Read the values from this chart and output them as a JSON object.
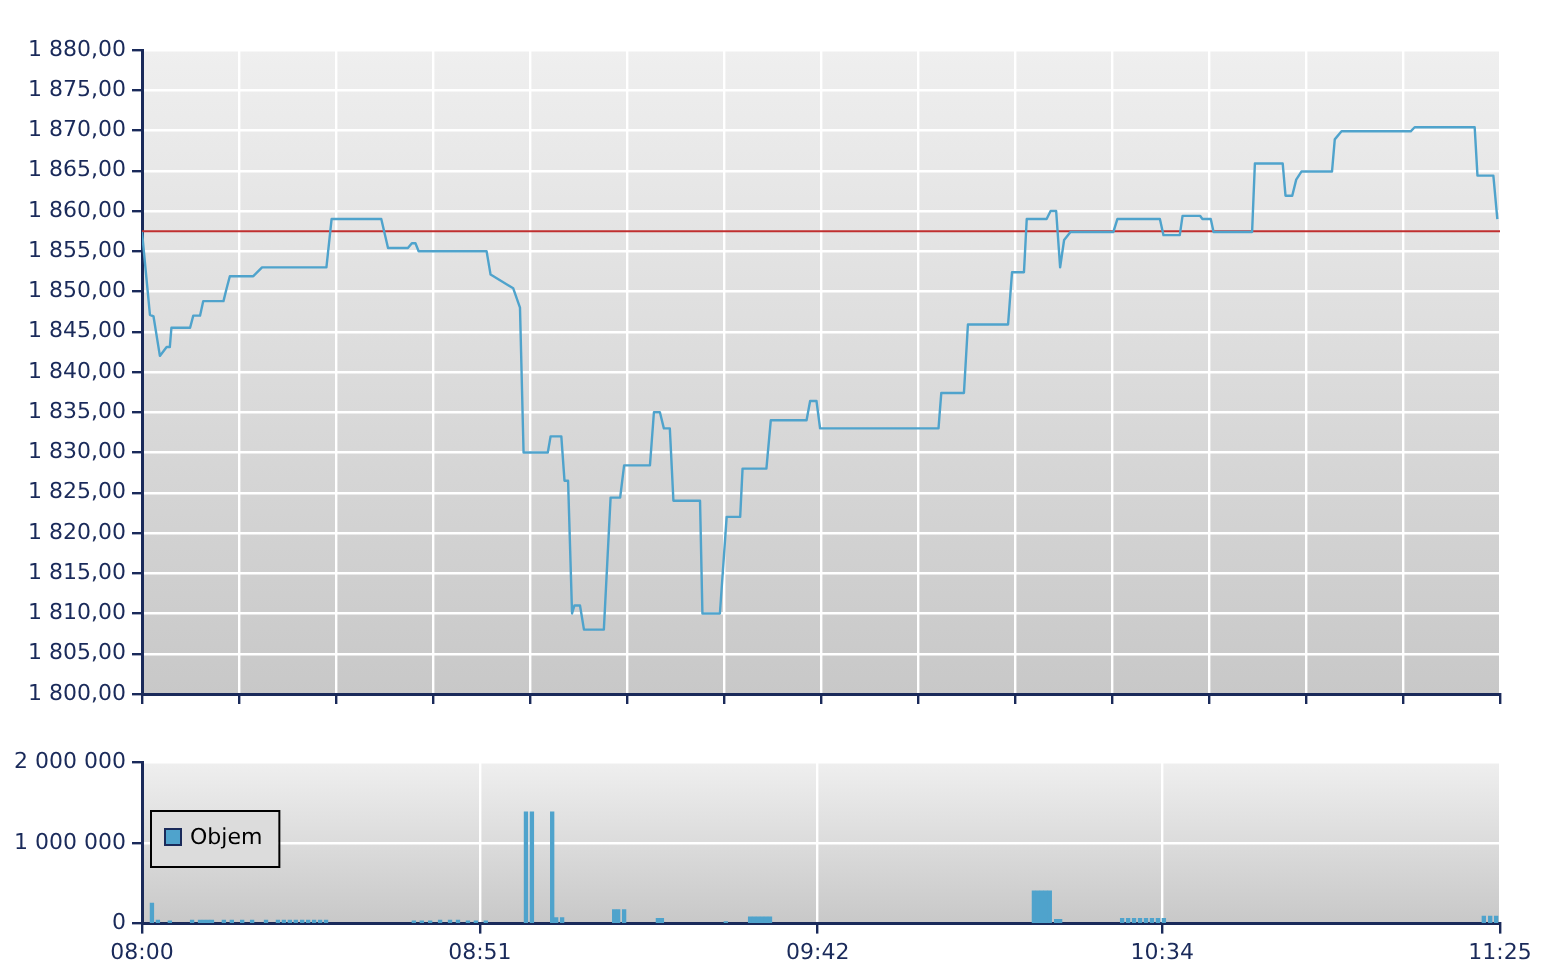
{
  "chart_data": [
    {
      "type": "line",
      "marker": "none",
      "grid": true,
      "tick_labels": "y",
      "color": "#4fa3cc",
      "x": [
        8.0,
        8.02,
        8.029,
        8.045,
        8.062,
        8.07,
        8.074,
        8.121,
        8.129,
        8.146,
        8.154,
        8.205,
        8.213,
        8.221,
        8.28,
        8.302,
        8.464,
        8.477,
        8.602,
        8.619,
        8.669,
        8.679,
        8.688,
        8.696,
        8.867,
        8.877,
        8.934,
        8.951,
        8.96,
        9.021,
        9.028,
        9.055,
        9.063,
        9.072,
        9.082,
        9.088,
        9.102,
        9.112,
        9.162,
        9.179,
        9.203,
        9.213,
        9.278,
        9.288,
        9.303,
        9.313,
        9.328,
        9.337,
        9.404,
        9.41,
        9.454,
        9.471,
        9.505,
        9.511,
        9.571,
        9.582,
        9.672,
        9.681,
        9.697,
        9.706,
        10.004,
        10.011,
        10.068,
        10.078,
        10.179,
        10.189,
        10.219,
        10.226,
        10.276,
        10.286,
        10.3,
        10.31,
        10.32,
        10.336,
        10.444,
        10.454,
        10.561,
        10.57,
        10.611,
        10.618,
        10.662,
        10.668,
        10.689,
        10.696,
        10.793,
        10.8,
        10.87,
        10.877,
        10.894,
        10.904,
        10.917,
        10.994,
        11.001,
        11.018,
        11.192,
        11.202,
        11.353,
        11.36,
        11.4,
        11.41
      ],
      "values": [
        1857.4,
        1847.1,
        1846.9,
        1842.0,
        1843.1,
        1843.1,
        1845.5,
        1845.5,
        1847.0,
        1847.0,
        1848.8,
        1848.8,
        1850.4,
        1851.9,
        1851.9,
        1853.0,
        1853.0,
        1859.0,
        1859.0,
        1855.4,
        1855.4,
        1856.0,
        1856.0,
        1855.0,
        1855.0,
        1852.1,
        1850.4,
        1848.0,
        1830.0,
        1830.0,
        1832.0,
        1832.0,
        1826.5,
        1826.5,
        1810.0,
        1811.0,
        1811.0,
        1808.0,
        1808.0,
        1824.4,
        1824.4,
        1828.4,
        1828.4,
        1835.0,
        1835.0,
        1833.0,
        1833.0,
        1824.0,
        1824.0,
        1810.0,
        1810.0,
        1822.0,
        1822.0,
        1828.0,
        1828.0,
        1834.0,
        1834.0,
        1836.4,
        1836.4,
        1833.0,
        1833.0,
        1837.4,
        1837.4,
        1845.9,
        1845.9,
        1852.4,
        1852.4,
        1859.0,
        1859.0,
        1860.0,
        1860.0,
        1853.0,
        1856.4,
        1857.4,
        1857.4,
        1859.0,
        1859.0,
        1857.0,
        1857.0,
        1859.4,
        1859.4,
        1859.0,
        1859.0,
        1857.4,
        1857.4,
        1865.9,
        1865.9,
        1861.9,
        1861.9,
        1863.9,
        1864.9,
        1864.9,
        1868.9,
        1869.9,
        1869.9,
        1870.4,
        1870.4,
        1864.4,
        1864.4,
        1859.0
      ],
      "xlim": [
        8,
        11.4167
      ],
      "xticks": [
        {
          "value": 8,
          "label": null
        },
        {
          "value": 8.244,
          "label": null
        },
        {
          "value": 8.4881,
          "label": null
        },
        {
          "value": 8.7321,
          "label": null
        },
        {
          "value": 8.9762,
          "label": null
        },
        {
          "value": 9.2202,
          "label": null
        },
        {
          "value": 9.4643,
          "label": null
        },
        {
          "value": 9.7083,
          "label": null
        },
        {
          "value": 9.9524,
          "label": null
        },
        {
          "value": 10.1964,
          "label": null
        },
        {
          "value": 10.4405,
          "label": null
        },
        {
          "value": 10.6845,
          "label": null
        },
        {
          "value": 10.9286,
          "label": null
        },
        {
          "value": 11.1726,
          "label": null
        },
        {
          "value": 11.4167,
          "label": null
        }
      ],
      "ylim": [
        1800,
        1880
      ],
      "yticks": [
        {
          "value": 1800,
          "label": "1 800,00"
        },
        {
          "value": 1805,
          "label": "1 805,00"
        },
        {
          "value": 1810,
          "label": "1 810,00"
        },
        {
          "value": 1815,
          "label": "1 815,00"
        },
        {
          "value": 1820,
          "label": "1 820,00"
        },
        {
          "value": 1825,
          "label": "1 825,00"
        },
        {
          "value": 1830,
          "label": "1 830,00"
        },
        {
          "value": 1835,
          "label": "1 835,00"
        },
        {
          "value": 1840,
          "label": "1 840,00"
        },
        {
          "value": 1845,
          "label": "1 845,00"
        },
        {
          "value": 1850,
          "label": "1 850,00"
        },
        {
          "value": 1855,
          "label": "1 855,00"
        },
        {
          "value": 1860,
          "label": "1 860,00"
        },
        {
          "value": 1865,
          "label": "1 865,00"
        },
        {
          "value": 1870,
          "label": "1 870,00"
        },
        {
          "value": 1875,
          "label": "1 875,00"
        },
        {
          "value": 1880,
          "label": "1 880,00"
        }
      ],
      "ref_lines": [
        {
          "axis": "y",
          "value": 1857.5,
          "color": "#c03030"
        }
      ]
    },
    {
      "type": "bar",
      "grid": true,
      "legend": "top left",
      "series": [
        {
          "name": "Objem",
          "color": "#4fa3cc",
          "x": [
            8.025,
            8.04,
            8.07,
            8.126,
            8.146,
            8.156,
            8.166,
            8.176,
            8.206,
            8.226,
            8.252,
            8.277,
            8.312,
            8.342,
            8.357,
            8.372,
            8.387,
            8.403,
            8.418,
            8.433,
            8.448,
            8.463,
            8.684,
            8.704,
            8.725,
            8.75,
            8.775,
            8.795,
            8.82,
            8.84,
            8.865,
            8.966,
            8.981,
            9.032,
            9.042,
            9.057,
            9.188,
            9.198,
            9.213,
            9.298,
            9.308,
            9.469,
            9.53,
            9.54,
            9.55,
            9.56,
            9.57,
            9.58,
            10.244,
            10.254,
            10.264,
            10.274,
            10.284,
            10.3,
            10.31,
            10.466,
            10.481,
            10.496,
            10.511,
            10.526,
            10.541,
            10.556,
            10.571,
            11.376,
            11.392,
            11.407
          ],
          "values": [
            250000,
            40000,
            30000,
            40000,
            40000,
            40000,
            40000,
            40000,
            40000,
            40000,
            40000,
            40000,
            40000,
            40000,
            40000,
            40000,
            40000,
            40000,
            40000,
            40000,
            40000,
            40000,
            30000,
            30000,
            30000,
            40000,
            40000,
            40000,
            30000,
            30000,
            30000,
            1380000,
            1380000,
            1380000,
            70000,
            70000,
            170000,
            170000,
            170000,
            60000,
            60000,
            20000,
            80000,
            80000,
            80000,
            80000,
            80000,
            80000,
            400000,
            400000,
            400000,
            400000,
            400000,
            50000,
            50000,
            60000,
            60000,
            60000,
            60000,
            60000,
            60000,
            60000,
            60000,
            90000,
            90000,
            90000
          ]
        }
      ],
      "xlim": [
        8,
        11.4167
      ],
      "xticks": [
        {
          "value": 8,
          "label": "08:00"
        },
        {
          "value": 8.85,
          "label": "08:51"
        },
        {
          "value": 9.7,
          "label": "09:42"
        },
        {
          "value": 10.5667,
          "label": "10:34"
        },
        {
          "value": 11.4167,
          "label": "11:25"
        }
      ],
      "ylim": [
        0,
        2000000
      ],
      "yticks": [
        0,
        {
          "value": 1000000,
          "label": "1 000 000"
        },
        {
          "value": 2000000,
          "label": "2 000 000"
        }
      ]
    }
  ]
}
